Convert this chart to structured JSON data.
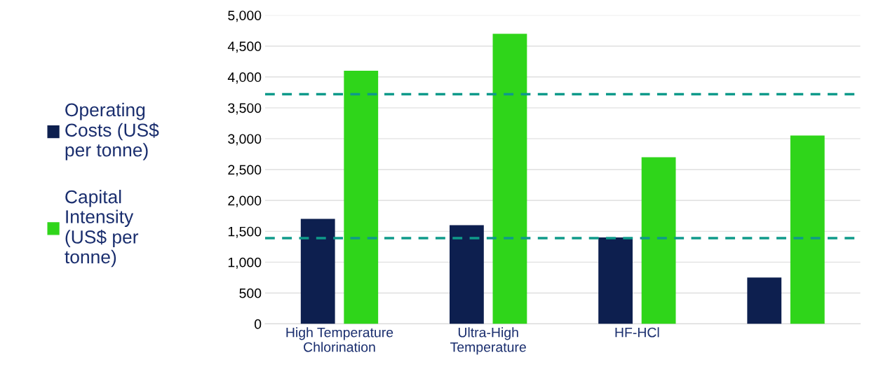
{
  "chart_data": {
    "type": "bar",
    "categories": [
      "High Temperature\nChlorination",
      "Ultra-High\nTemperature",
      "HF-HCl",
      null
    ],
    "series": [
      {
        "name": "Operating\nCosts (US$\nper tonne)",
        "color": "#0d1f4f",
        "values": [
          1700,
          1600,
          1400,
          750
        ]
      },
      {
        "name": "Capital\nIntensity\n(US$ per\ntonne)",
        "color": "#2fd51a",
        "values": [
          4100,
          4700,
          2700,
          3050
        ]
      }
    ],
    "ylim": [
      0,
      5000
    ],
    "yticks": [
      0,
      500,
      {
        "value": 1000,
        "label": "1,000"
      },
      {
        "value": 1500,
        "label": "1,500"
      },
      {
        "value": 2000,
        "label": "2,000"
      },
      {
        "value": 2500,
        "label": "2,500"
      },
      {
        "value": 3000,
        "label": "3,000"
      },
      {
        "value": 3500,
        "label": "3,500"
      },
      {
        "value": 4000,
        "label": "4,000"
      },
      {
        "value": 4500,
        "label": "4,500"
      },
      {
        "value": 5000,
        "label": "5,000"
      }
    ],
    "ref_lines": [
      {
        "axis": "y",
        "value": 3720,
        "color": "#0f9a8a",
        "line_style": "dashed"
      },
      {
        "axis": "y",
        "value": 1390,
        "color": "#0f9a8a",
        "line_style": "dashed"
      }
    ],
    "grid": "y",
    "legend": "left"
  }
}
